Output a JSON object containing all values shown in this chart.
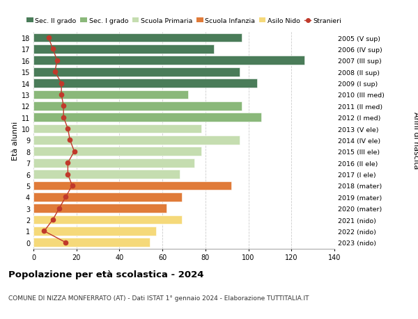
{
  "ages": [
    18,
    17,
    16,
    15,
    14,
    13,
    12,
    11,
    10,
    9,
    8,
    7,
    6,
    5,
    4,
    3,
    2,
    1,
    0
  ],
  "years": [
    "2005 (V sup)",
    "2006 (IV sup)",
    "2007 (III sup)",
    "2008 (II sup)",
    "2009 (I sup)",
    "2010 (III med)",
    "2011 (II med)",
    "2012 (I med)",
    "2013 (V ele)",
    "2014 (IV ele)",
    "2015 (III ele)",
    "2016 (II ele)",
    "2017 (I ele)",
    "2018 (mater)",
    "2019 (mater)",
    "2020 (mater)",
    "2021 (nido)",
    "2022 (nido)",
    "2023 (nido)"
  ],
  "bar_values": [
    97,
    84,
    126,
    96,
    104,
    72,
    97,
    106,
    78,
    96,
    78,
    75,
    68,
    92,
    69,
    62,
    69,
    57,
    54
  ],
  "stranieri": [
    7,
    9,
    11,
    10,
    13,
    13,
    14,
    14,
    16,
    17,
    19,
    16,
    16,
    18,
    15,
    12,
    9,
    5,
    15
  ],
  "bar_colors": [
    "#4a7c59",
    "#4a7c59",
    "#4a7c59",
    "#4a7c59",
    "#4a7c59",
    "#8ab87a",
    "#8ab87a",
    "#8ab87a",
    "#c5ddb0",
    "#c5ddb0",
    "#c5ddb0",
    "#c5ddb0",
    "#c5ddb0",
    "#e07b39",
    "#e07b39",
    "#e07b39",
    "#f5d97a",
    "#f5d97a",
    "#f5d97a"
  ],
  "legend_labels": [
    "Sec. II grado",
    "Sec. I grado",
    "Scuola Primaria",
    "Scuola Infanzia",
    "Asilo Nido",
    "Stranieri"
  ],
  "legend_colors": [
    "#4a7c59",
    "#8ab87a",
    "#c5ddb0",
    "#e07b39",
    "#f5d97a",
    "#c0392b"
  ],
  "stranieri_color": "#c0392b",
  "ylabel_left": "Età alunni",
  "ylabel_right": "Anni di nascita",
  "xlim": [
    0,
    140
  ],
  "xticks": [
    0,
    20,
    40,
    60,
    80,
    100,
    120,
    140
  ],
  "title": "Popolazione per età scolastica - 2024",
  "subtitle": "COMUNE DI NIZZA MONFERRATO (AT) - Dati ISTAT 1° gennaio 2024 - Elaborazione TUTTITALIA.IT",
  "background_color": "#ffffff",
  "grid_color": "#cccccc"
}
